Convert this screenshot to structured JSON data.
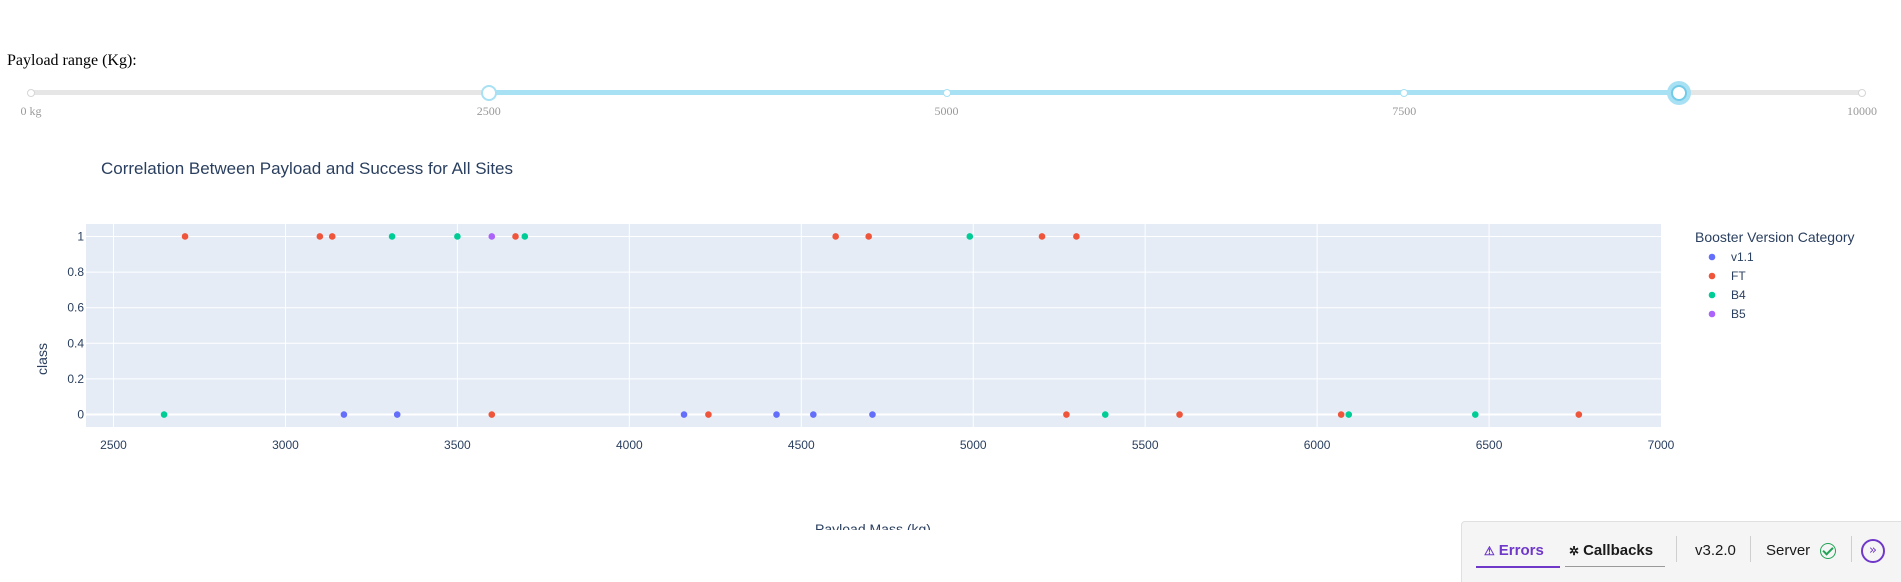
{
  "slider": {
    "label": "Payload range (Kg):",
    "min": 0,
    "max": 10000,
    "value": [
      2500,
      9000
    ],
    "marks": [
      {
        "value": 0,
        "label": "0 kg"
      },
      {
        "value": 2500,
        "label": "2500"
      },
      {
        "value": 5000,
        "label": "5000"
      },
      {
        "value": 7500,
        "label": "7500"
      },
      {
        "value": 10000,
        "label": "10000"
      }
    ],
    "track_color": "#a8e1f3"
  },
  "chart_data": {
    "type": "scatter",
    "title": "Correlation Between Payload and Success for All Sites",
    "xlabel": "Payload Mass (kg)",
    "ylabel": "class",
    "xlim": [
      2420,
      7000
    ],
    "ylim": [
      -0.07,
      1.07
    ],
    "x_ticks": [
      2500,
      3000,
      3500,
      4000,
      4500,
      5000,
      5500,
      6000,
      6500,
      7000
    ],
    "y_ticks": [
      0,
      0.2,
      0.4,
      0.6,
      0.8,
      1
    ],
    "y_tick_labels": [
      "0",
      "0.2",
      "0.4",
      "0.6",
      "0.8",
      "1"
    ],
    "grid": true,
    "legend": {
      "title": "Booster Version Category",
      "placement": "right"
    },
    "series": [
      {
        "name": "v1.1",
        "color": "#636efa",
        "points": [
          [
            3170,
            0
          ],
          [
            3325,
            0
          ],
          [
            4159,
            0
          ],
          [
            4428,
            0
          ],
          [
            4535,
            0
          ],
          [
            4707,
            0
          ]
        ]
      },
      {
        "name": "FT",
        "color": "#ef553b",
        "points": [
          [
            2708,
            1
          ],
          [
            3100,
            1
          ],
          [
            3136,
            1
          ],
          [
            3669,
            1
          ],
          [
            4600,
            1
          ],
          [
            4696,
            1
          ],
          [
            5200,
            1
          ],
          [
            5300,
            1
          ],
          [
            3600,
            0
          ],
          [
            4230,
            0
          ],
          [
            5271,
            0
          ],
          [
            5600,
            0
          ],
          [
            6070,
            0
          ],
          [
            6761,
            0
          ]
        ]
      },
      {
        "name": "B4",
        "color": "#00cc96",
        "points": [
          [
            3310,
            1
          ],
          [
            3500,
            1
          ],
          [
            3696,
            1
          ],
          [
            4990,
            1
          ],
          [
            2647,
            0
          ],
          [
            5384,
            0
          ],
          [
            6092,
            0
          ],
          [
            6460,
            0
          ]
        ]
      },
      {
        "name": "B5",
        "color": "#ab63fa",
        "points": [
          [
            3600,
            1
          ]
        ]
      }
    ]
  },
  "debug_menu": {
    "errors_label": "Errors",
    "callbacks_label": "Callbacks",
    "version": "v3.2.0",
    "server_label": "Server",
    "accent_color": "#6f38c9"
  }
}
